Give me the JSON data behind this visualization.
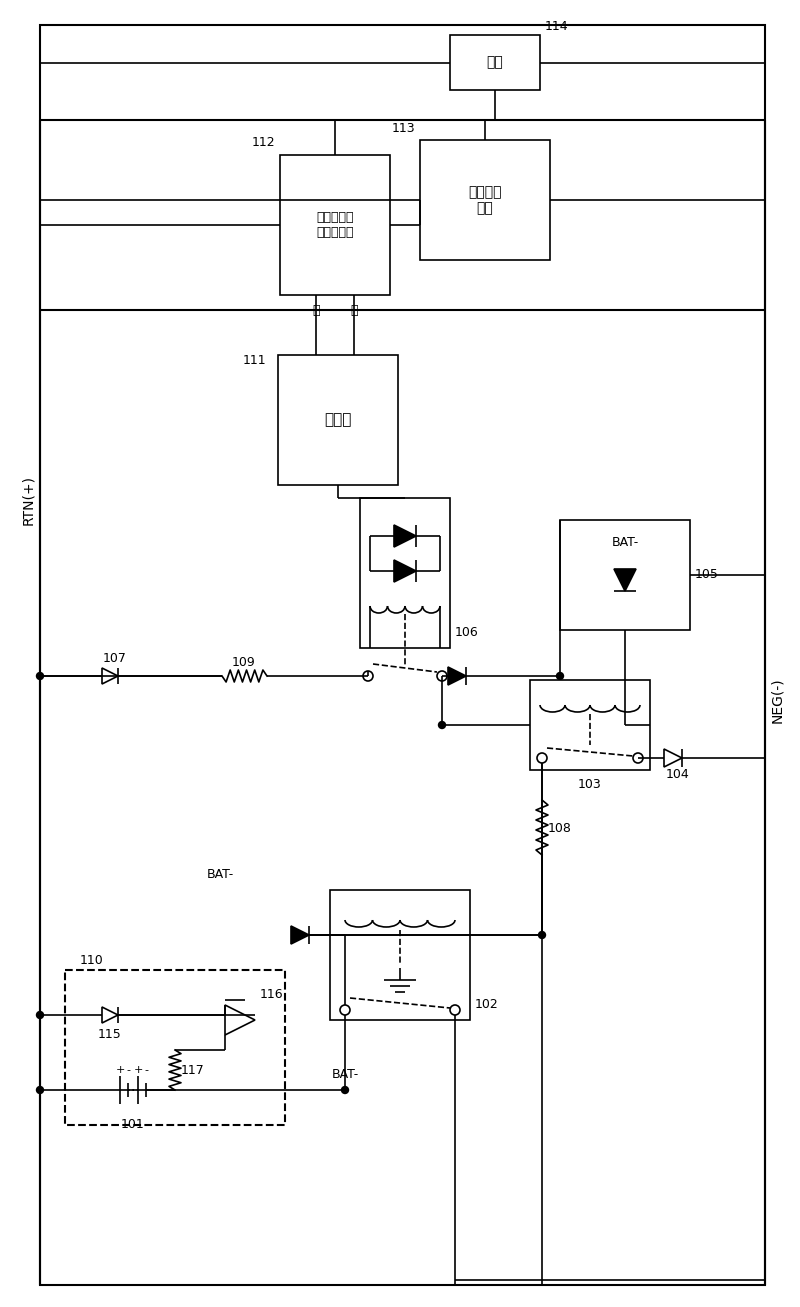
{
  "bg_color": "#ffffff",
  "line_color": "#000000",
  "fig_width": 8.0,
  "fig_height": 13.07,
  "dpi": 100,
  "text": {
    "RTN": "RTN(+)",
    "NEG": "NEG(-)",
    "t101": "101",
    "t102": "102",
    "t103": "103",
    "t104": "104",
    "t105": "105",
    "t106": "106",
    "t107": "107",
    "t108": "108",
    "t109": "109",
    "t110": "110",
    "t111": "111",
    "t112": "112",
    "t113": "113",
    "t114": "114",
    "t115": "115",
    "t116": "116",
    "t117": "117",
    "bat_minus": "BAT-",
    "box111": "控制器",
    "box112": "控制器电源\n防反接模块",
    "box113": "整流电源\n模块",
    "box114": "负载",
    "zheng": "正",
    "fu": "负"
  }
}
